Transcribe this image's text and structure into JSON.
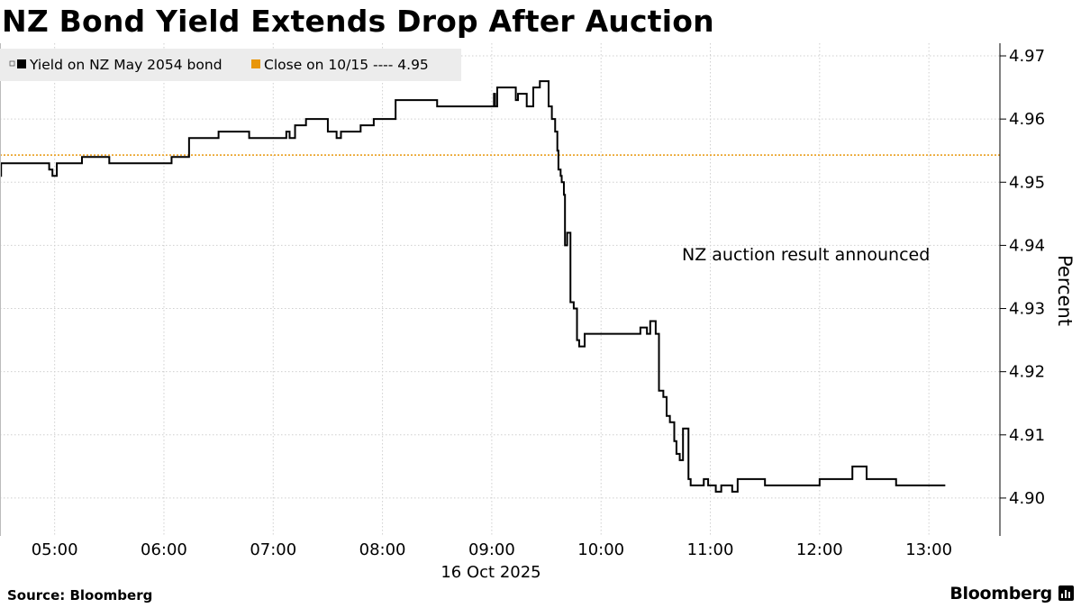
{
  "title": "NZ Bond Yield Extends Drop After Auction",
  "source": "Source: Bloomberg",
  "brand": "Bloomberg",
  "colors": {
    "yield_line": "#000000",
    "close_line": "#e8960c",
    "grid": "#cfcfcf",
    "legend_bg": "#ececec"
  },
  "chart_data": {
    "type": "line",
    "title": "NZ Bond Yield Extends Drop After Auction",
    "xlabel": "16 Oct 2025",
    "ylabel": "Percent",
    "x_unit": "hours (local time, decimal)",
    "xlim": [
      4.5,
      13.65
    ],
    "ylim": [
      4.894,
      4.972
    ],
    "x_ticks": [
      5,
      6,
      7,
      8,
      9,
      10,
      11,
      12,
      13
    ],
    "x_tick_labels": [
      "05:00",
      "06:00",
      "07:00",
      "08:00",
      "09:00",
      "10:00",
      "11:00",
      "12:00",
      "13:00"
    ],
    "y_ticks": [
      4.9,
      4.91,
      4.92,
      4.93,
      4.94,
      4.95,
      4.96,
      4.97
    ],
    "y_tick_labels": [
      "4.90",
      "4.91",
      "4.92",
      "4.93",
      "4.94",
      "4.95",
      "4.96",
      "4.97"
    ],
    "legend": [
      {
        "label": "Yield on NZ May 2054 bond",
        "color": "#000000",
        "marker": "square"
      },
      {
        "label": "Close on 10/15 ---- 4.95",
        "color": "#e8960c",
        "marker": "square"
      }
    ],
    "reference_line": {
      "name": "Close on 10/15",
      "value": 4.9543
    },
    "annotation": "NZ auction result announced",
    "series": [
      {
        "name": "Yield on NZ May 2054 bond",
        "step": true,
        "x": [
          4.5,
          4.51,
          4.95,
          4.98,
          5.02,
          5.25,
          5.5,
          5.75,
          5.98,
          6.07,
          6.1,
          6.23,
          6.5,
          6.78,
          7.08,
          7.12,
          7.15,
          7.2,
          7.3,
          7.33,
          7.37,
          7.5,
          7.58,
          7.62,
          7.8,
          7.92,
          8.12,
          8.5,
          9.0,
          9.02,
          9.03,
          9.05,
          9.1,
          9.18,
          9.2,
          9.22,
          9.24,
          9.28,
          9.3,
          9.32,
          9.38,
          9.44,
          9.5,
          9.52,
          9.55,
          9.58,
          9.6,
          9.61,
          9.63,
          9.64,
          9.66,
          9.67,
          9.69,
          9.72,
          9.75,
          9.76,
          9.78,
          9.8,
          9.85,
          10.2,
          10.25,
          10.3,
          10.32,
          10.36,
          10.42,
          10.45,
          10.5,
          10.53,
          10.57,
          10.6,
          10.63,
          10.67,
          10.69,
          10.72,
          10.75,
          10.8,
          10.82,
          10.88,
          10.9,
          10.92,
          10.94,
          10.98,
          11.05,
          11.1,
          11.2,
          11.25,
          11.5,
          11.7,
          11.8,
          12.0,
          12.1,
          12.23,
          12.3,
          12.43,
          12.5,
          12.7,
          12.9,
          13.0,
          13.02,
          13.04,
          13.1,
          13.15
        ],
        "y": [
          4.951,
          4.953,
          4.952,
          4.951,
          4.953,
          4.954,
          4.953,
          4.953,
          4.953,
          4.954,
          4.954,
          4.957,
          4.958,
          4.957,
          4.957,
          4.958,
          4.957,
          4.959,
          4.96,
          4.96,
          4.96,
          4.958,
          4.957,
          4.958,
          4.959,
          4.96,
          4.963,
          4.962,
          4.962,
          4.964,
          4.962,
          4.965,
          4.965,
          4.965,
          4.965,
          4.963,
          4.964,
          4.964,
          4.964,
          4.962,
          4.965,
          4.966,
          4.966,
          4.962,
          4.96,
          4.958,
          4.955,
          4.952,
          4.951,
          4.95,
          4.948,
          4.94,
          4.942,
          4.931,
          4.93,
          4.93,
          4.925,
          4.924,
          4.926,
          4.926,
          4.926,
          4.926,
          4.926,
          4.927,
          4.926,
          4.928,
          4.926,
          4.917,
          4.916,
          4.913,
          4.912,
          4.909,
          4.907,
          4.906,
          4.911,
          4.903,
          4.902,
          4.902,
          4.902,
          4.902,
          4.903,
          4.902,
          4.901,
          4.902,
          4.901,
          4.903,
          4.902,
          4.902,
          4.902,
          4.903,
          4.903,
          4.903,
          4.905,
          4.903,
          4.903,
          4.902,
          4.902,
          4.902,
          4.902,
          4.902,
          4.902,
          4.902
        ]
      }
    ]
  }
}
